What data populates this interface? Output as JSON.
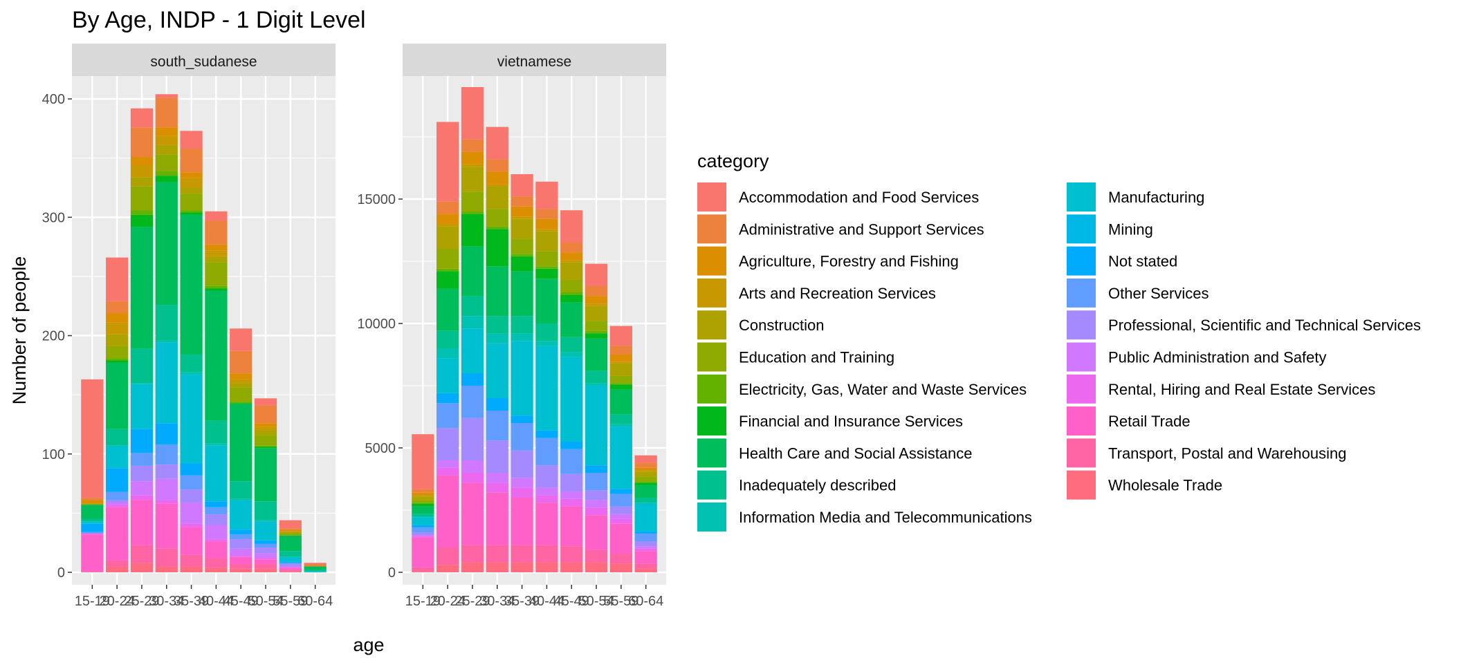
{
  "chart_data": {
    "type": "bar",
    "stacked": true,
    "title": "By Age,  INDP - 1 Digit Level",
    "xlabel": "age",
    "ylabel": "Number of people",
    "legend_title": "category",
    "legend_position": "right",
    "grid": true,
    "age_groups": [
      "15-19",
      "20-24",
      "25-29",
      "30-34",
      "35-39",
      "40-44",
      "45-49",
      "50-54",
      "55-59",
      "60-64"
    ],
    "categories": [
      {
        "name": "Accommodation and Food Services",
        "color": "#F8766D"
      },
      {
        "name": "Administrative and Support Services",
        "color": "#EC823C"
      },
      {
        "name": "Agriculture, Forestry and Fishing",
        "color": "#DB8E00"
      },
      {
        "name": "Arts and Recreation Services",
        "color": "#C79800"
      },
      {
        "name": "Construction",
        "color": "#AEA200"
      },
      {
        "name": "Education and Training",
        "color": "#8FAA00"
      },
      {
        "name": "Electricity, Gas, Water and Waste Services",
        "color": "#64B200"
      },
      {
        "name": "Financial and Insurance Services",
        "color": "#00B81B"
      },
      {
        "name": "Health Care and Social Assistance",
        "color": "#00BD5C"
      },
      {
        "name": "Inadequately described",
        "color": "#00C08D"
      },
      {
        "name": "Information Media and Telecommunications",
        "color": "#00C1B2"
      },
      {
        "name": "Manufacturing",
        "color": "#00BFD0"
      },
      {
        "name": "Mining",
        "color": "#00B8E5"
      },
      {
        "name": "Not stated",
        "color": "#00ABFD"
      },
      {
        "name": "Other Services",
        "color": "#619CFF"
      },
      {
        "name": "Professional, Scientific and Technical Services",
        "color": "#A58AFF"
      },
      {
        "name": "Public Administration and Safety",
        "color": "#D078FF"
      },
      {
        "name": "Rental, Hiring and Real Estate Services",
        "color": "#EC69EF"
      },
      {
        "name": "Retail Trade",
        "color": "#FF61C9"
      },
      {
        "name": "Transport, Postal and Warehousing",
        "color": "#FF64A4"
      },
      {
        "name": "Wholesale Trade",
        "color": "#FF6C80"
      }
    ],
    "panels": [
      {
        "name": "south_sudanese",
        "ylim": [
          0,
          410
        ],
        "yticks": [
          0,
          100,
          200,
          300,
          400
        ],
        "series": [
          {
            "category": "Wholesale Trade",
            "values": [
              0,
              5,
              8,
              5,
              5,
              4,
              3,
              3,
              1,
              0
            ]
          },
          {
            "category": "Transport, Postal and Warehousing",
            "values": [
              1,
              5,
              15,
              15,
              10,
              8,
              4,
              4,
              1,
              0
            ]
          },
          {
            "category": "Retail Trade",
            "values": [
              31,
              45,
              38,
              38,
              23,
              14,
              6,
              4,
              2,
              0
            ]
          },
          {
            "category": "Rental, Hiring and Real Estate Services",
            "values": [
              1,
              2,
              4,
              3,
              3,
              2,
              1,
              1,
              0,
              0
            ]
          },
          {
            "category": "Public Administration and Safety",
            "values": [
              0,
              2,
              12,
              18,
              18,
              12,
              6,
              4,
              1,
              0
            ]
          },
          {
            "category": "Professional, Scientific and Technical Services",
            "values": [
              0,
              2,
              13,
              12,
              11,
              9,
              8,
              5,
              2,
              0
            ]
          },
          {
            "category": "Other Services",
            "values": [
              1,
              7,
              11,
              17,
              12,
              6,
              4,
              3,
              1,
              0
            ]
          },
          {
            "category": "Not stated",
            "values": [
              7,
              20,
              20,
              18,
              10,
              5,
              4,
              3,
              1,
              0
            ]
          },
          {
            "category": "Mining",
            "values": [
              0,
              0,
              0,
              0,
              0,
              0,
              0,
              0,
              0,
              0
            ]
          },
          {
            "category": "Manufacturing",
            "values": [
              2,
              19,
              38,
              68,
              75,
              47,
              25,
              16,
              4,
              1
            ]
          },
          {
            "category": "Information Media and Telecommunications",
            "values": [
              0,
              0,
              1,
              2,
              2,
              2,
              1,
              1,
              0,
              0
            ]
          },
          {
            "category": "Inadequately described",
            "values": [
              2,
              14,
              29,
              30,
              15,
              19,
              15,
              16,
              5,
              1
            ]
          },
          {
            "category": "Health Care and Social Assistance",
            "values": [
              12,
              56,
              103,
              104,
              118,
              110,
              65,
              45,
              13,
              3
            ]
          },
          {
            "category": "Financial and Insurance Services",
            "values": [
              0,
              2,
              10,
              5,
              2,
              2,
              1,
              1,
              0,
              0
            ]
          },
          {
            "category": "Electricity, Gas, Water and Waste Services",
            "values": [
              0,
              2,
              4,
              4,
              2,
              2,
              1,
              1,
              0,
              0
            ]
          },
          {
            "category": "Education and Training",
            "values": [
              1,
              10,
              20,
              14,
              14,
              20,
              12,
              9,
              2,
              0
            ]
          },
          {
            "category": "Construction",
            "values": [
              0,
              10,
              8,
              8,
              5,
              5,
              4,
              4,
              1,
              0
            ]
          },
          {
            "category": "Arts and Recreation Services",
            "values": [
              0,
              10,
              10,
              8,
              8,
              5,
              3,
              3,
              1,
              0
            ]
          },
          {
            "category": "Agriculture, Forestry and Fishing",
            "values": [
              3,
              8,
              7,
              7,
              5,
              5,
              5,
              3,
              1,
              0
            ]
          },
          {
            "category": "Administrative and Support Services",
            "values": [
              2,
              10,
              25,
              25,
              20,
              20,
              19,
              15,
              1,
              2
            ]
          },
          {
            "category": "Accommodation and Food Services",
            "values": [
              100,
              37,
              16,
              3,
              15,
              8,
              19,
              6,
              7,
              1
            ]
          }
        ]
      },
      {
        "name": "vietnamese",
        "ylim": [
          0,
          19500
        ],
        "yticks": [
          0,
          5000,
          10000,
          15000
        ],
        "series": [
          {
            "category": "Wholesale Trade",
            "values": [
              50,
              300,
              400,
              400,
              400,
              400,
              400,
              400,
              350,
              150
            ]
          },
          {
            "category": "Transport, Postal and Warehousing",
            "values": [
              150,
              700,
              700,
              700,
              700,
              700,
              650,
              500,
              400,
              200
            ]
          },
          {
            "category": "Retail Trade",
            "values": [
              1200,
              2900,
              2500,
              2100,
              1900,
              1700,
              1600,
              1400,
              1200,
              500
            ]
          },
          {
            "category": "Rental, Hiring and Real Estate Services",
            "values": [
              50,
              300,
              400,
              400,
              400,
              300,
              300,
              300,
              200,
              100
            ]
          },
          {
            "category": "Public Administration and Safety",
            "values": [
              50,
              300,
              500,
              400,
              400,
              300,
              300,
              300,
              200,
              100
            ]
          },
          {
            "category": "Professional, Scientific and Technical Services",
            "values": [
              100,
              1300,
              1700,
              1300,
              1100,
              900,
              700,
              400,
              300,
              200
            ]
          },
          {
            "category": "Other Services",
            "values": [
              200,
              1000,
              1300,
              1200,
              1100,
              1100,
              1000,
              700,
              500,
              300
            ]
          },
          {
            "category": "Not stated",
            "values": [
              100,
              400,
              500,
              500,
              300,
              300,
              300,
              300,
              200,
              100
            ]
          },
          {
            "category": "Mining",
            "values": [
              0,
              0,
              0,
              0,
              0,
              0,
              0,
              0,
              0,
              0
            ]
          },
          {
            "category": "Manufacturing",
            "values": [
              300,
              1400,
              1800,
              2200,
              3000,
              3400,
              3400,
              3200,
              2500,
              1100
            ]
          },
          {
            "category": "Information Media and Telecommunications",
            "values": [
              50,
              400,
              500,
              400,
              300,
              200,
              200,
              100,
              100,
              50
            ]
          },
          {
            "category": "Inadequately described",
            "values": [
              100,
              700,
              800,
              700,
              700,
              700,
              600,
              500,
              400,
              200
            ]
          },
          {
            "category": "Health Care and Social Assistance",
            "values": [
              300,
              1700,
              2000,
              2000,
              1800,
              1800,
              1400,
              1300,
              1000,
              500
            ]
          },
          {
            "category": "Financial and Insurance Services",
            "values": [
              100,
              700,
              1300,
              1500,
              600,
              400,
              300,
              200,
              200,
              100
            ]
          },
          {
            "category": "Electricity, Gas, Water and Waste Services",
            "values": [
              50,
              100,
              100,
              100,
              100,
              100,
              100,
              100,
              50,
              50
            ]
          },
          {
            "category": "Education and Training",
            "values": [
              100,
              800,
              800,
              700,
              600,
              600,
              500,
              400,
              300,
              200
            ]
          },
          {
            "category": "Construction",
            "values": [
              150,
              900,
              1000,
              900,
              800,
              800,
              700,
              600,
              500,
              200
            ]
          },
          {
            "category": "Arts and Recreation Services",
            "values": [
              50,
              100,
              100,
              100,
              100,
              100,
              100,
              100,
              50,
              50
            ]
          },
          {
            "category": "Agriculture, Forestry and Fishing",
            "values": [
              100,
              400,
              500,
              500,
              400,
              400,
              300,
              300,
              300,
              100
            ]
          },
          {
            "category": "Administrative and Support Services",
            "values": [
              150,
              500,
              500,
              500,
              400,
              400,
              400,
              400,
              350,
              200
            ]
          },
          {
            "category": "Accommodation and Food Services",
            "values": [
              2200,
              3200,
              2100,
              1300,
              900,
              1100,
              1300,
              900,
              800,
              300
            ]
          }
        ]
      }
    ]
  }
}
